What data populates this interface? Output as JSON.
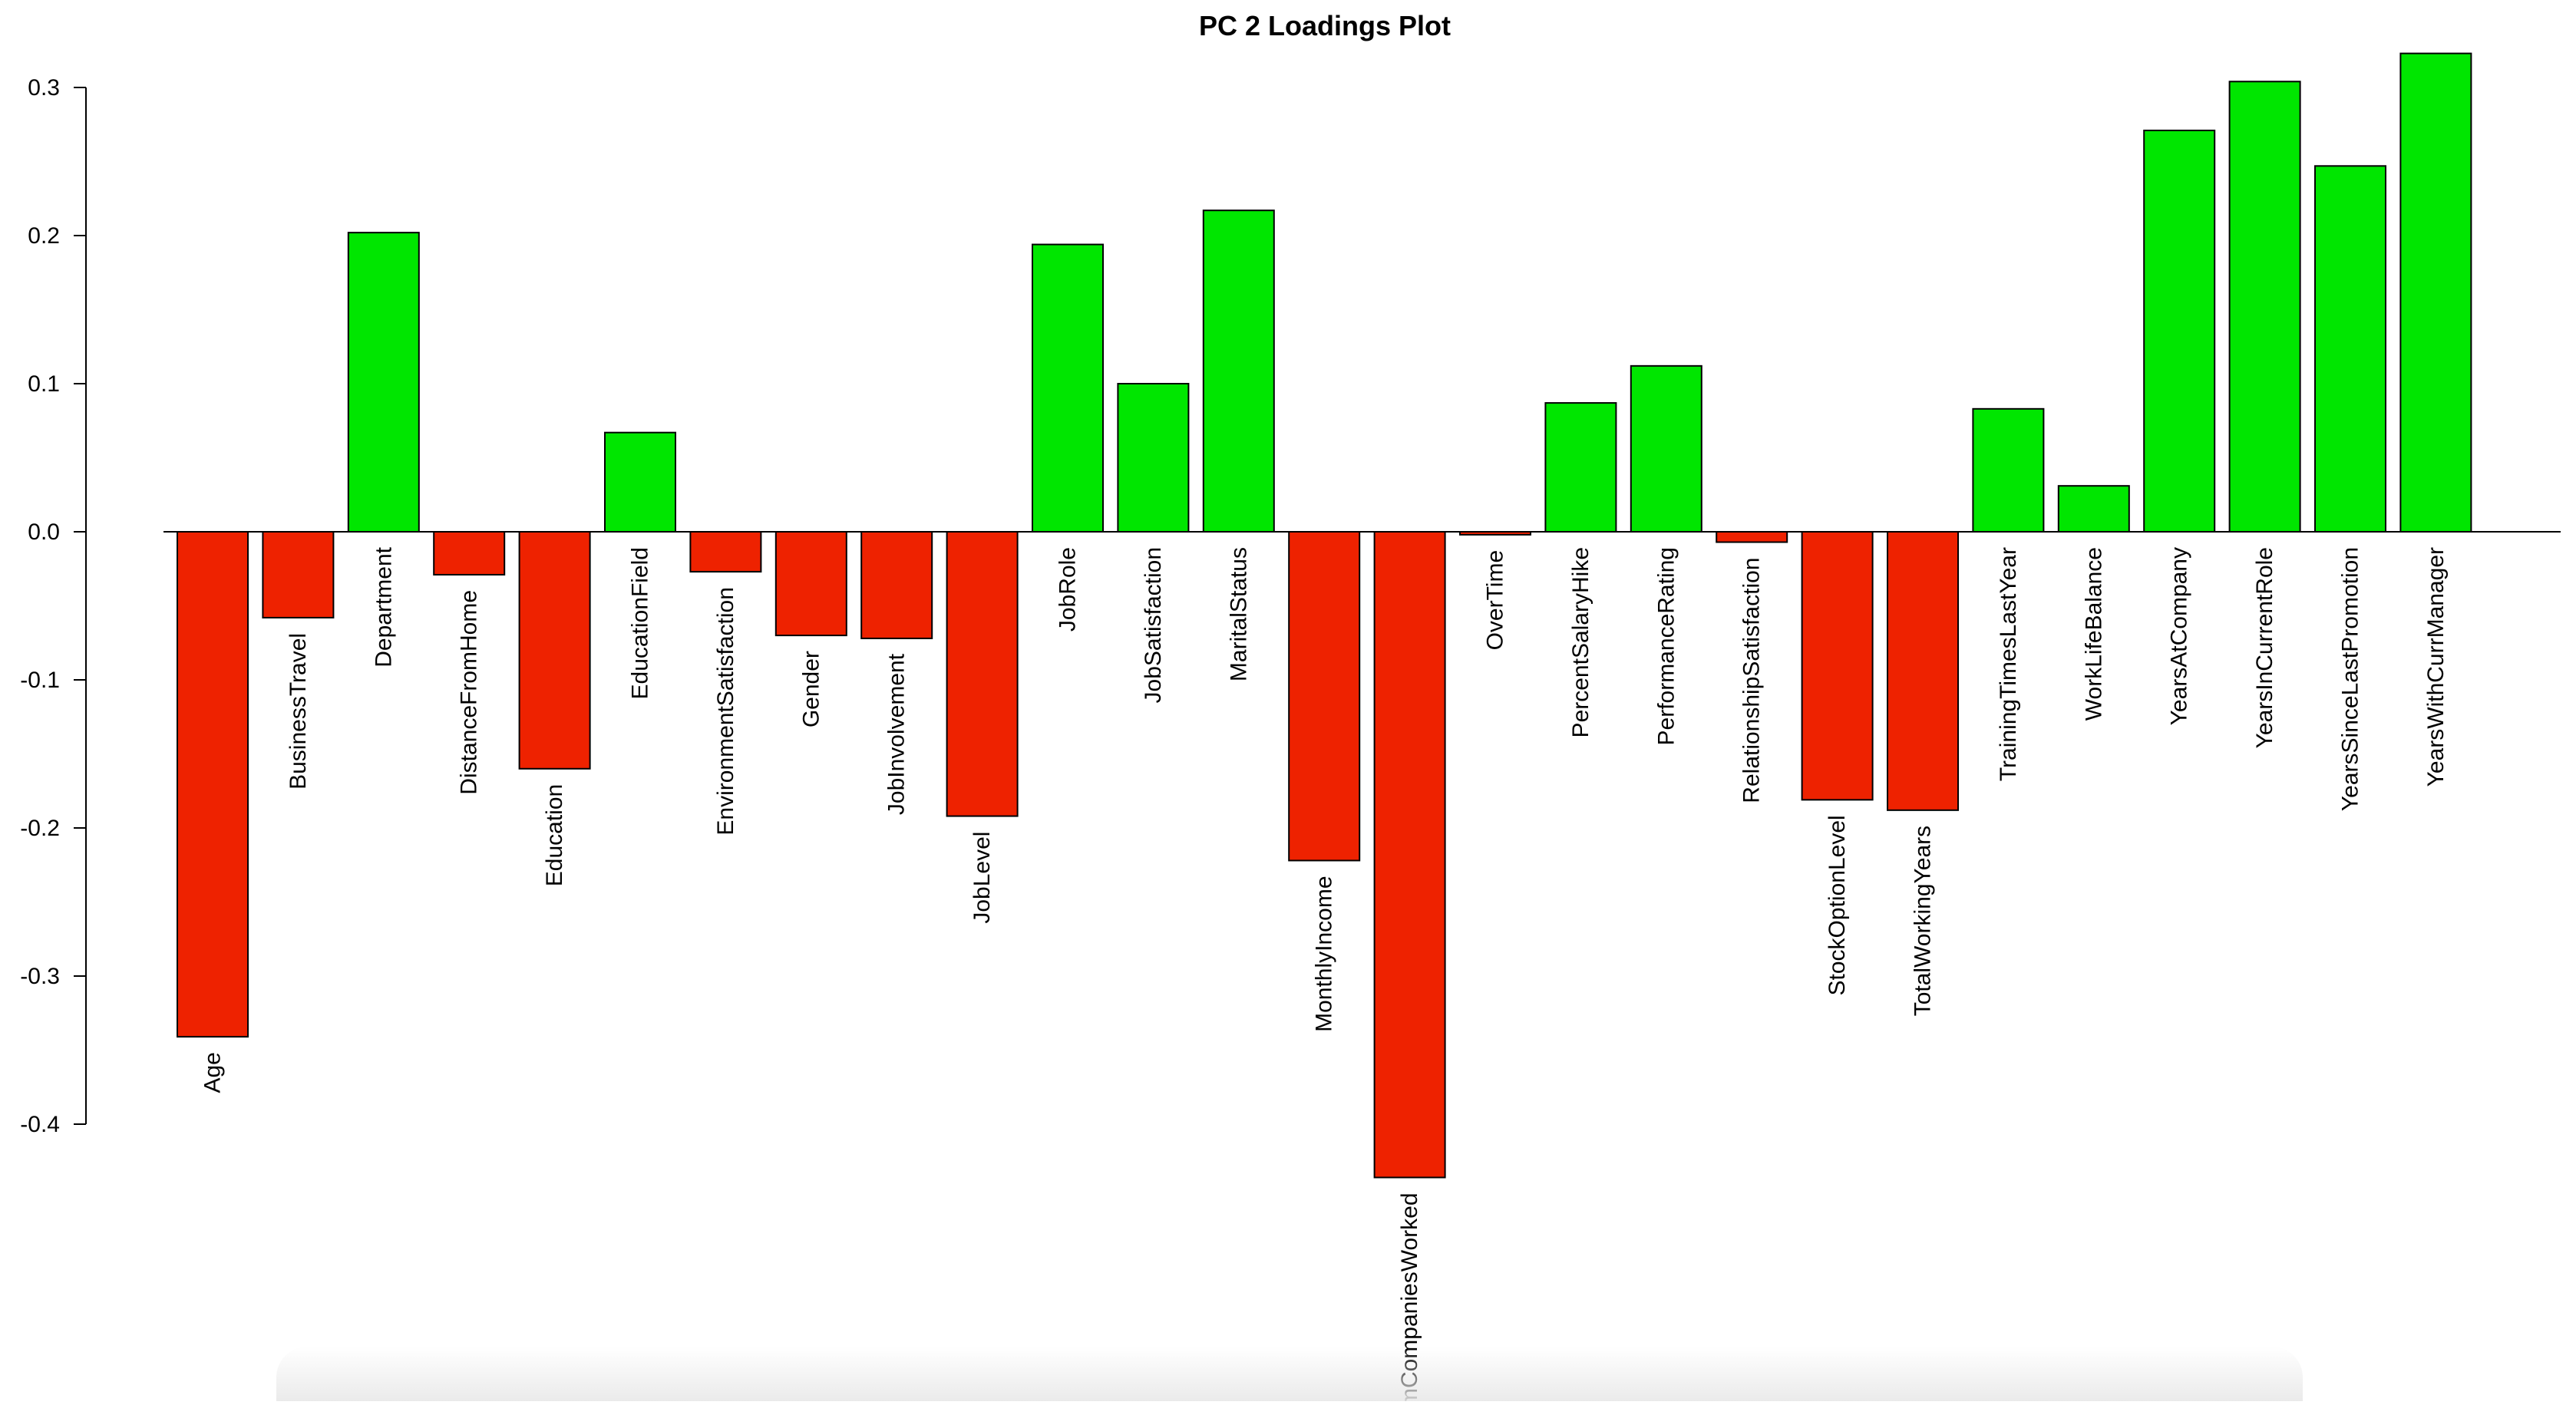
{
  "chart_data": {
    "type": "bar",
    "title": "PC 2 Loadings Plot",
    "xlabel": "",
    "ylabel": "",
    "ylim": [
      -0.4,
      0.3
    ],
    "yticks": [
      "0.3",
      "0.2",
      "0.1",
      "0.0",
      "-0.1",
      "-0.2",
      "-0.3",
      "-0.4"
    ],
    "yticks_values": [
      0.3,
      0.2,
      0.1,
      0.0,
      -0.1,
      -0.2,
      -0.3,
      -0.4
    ],
    "grid": false,
    "colors": {
      "positive": "#00e600",
      "negative": "#ee2200",
      "stroke": "#000000"
    },
    "categories": [
      "Age",
      "BusinessTravel",
      "Department",
      "DistanceFromHome",
      "Education",
      "EducationField",
      "EnvironmentSatisfaction",
      "Gender",
      "JobInvolvement",
      "JobLevel",
      "JobRole",
      "JobSatisfaction",
      "MaritalStatus",
      "MonthlyIncome",
      "NumCompaniesWorked",
      "OverTime",
      "PercentSalaryHike",
      "PerformanceRating",
      "RelationshipSatisfaction",
      "StockOptionLevel",
      "TotalWorkingYears",
      "TrainingTimesLastYear",
      "WorkLifeBalance",
      "YearsAtCompany",
      "YearsInCurrentRole",
      "YearsSinceLastPromotion",
      "YearsWithCurrManager"
    ],
    "values": [
      -0.341,
      -0.058,
      0.202,
      -0.029,
      -0.16,
      0.067,
      -0.027,
      -0.07,
      -0.072,
      -0.192,
      0.194,
      0.1,
      0.217,
      -0.222,
      -0.436,
      -0.002,
      0.087,
      0.112,
      -0.007,
      -0.181,
      -0.188,
      0.083,
      0.031,
      0.271,
      0.304,
      0.247,
      0.323
    ]
  }
}
